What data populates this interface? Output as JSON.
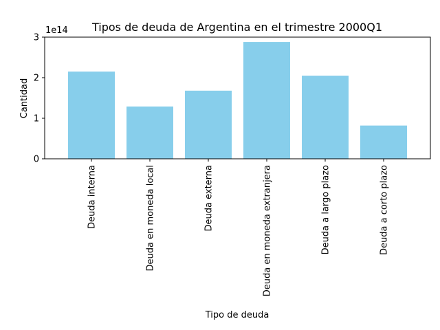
{
  "chart_data": {
    "type": "bar",
    "title": "Tipos de deuda de Argentina en el trimestre 2000Q1",
    "xlabel": "Tipo de deuda",
    "ylabel": "Cantidad",
    "offset_label": "1e14",
    "categories": [
      "Deuda interna",
      "Deuda en moneda local",
      "Deuda externa",
      "Deuda en moneda extranjera",
      "Deuda a largo plazo",
      "Deuda a corto plazo"
    ],
    "values": [
      215000000000000,
      129000000000000,
      168000000000000,
      288000000000000,
      205000000000000,
      82000000000000
    ],
    "ylim": [
      0,
      300000000000000
    ],
    "yticks": [
      0,
      100000000000000,
      200000000000000,
      300000000000000
    ],
    "ytick_labels": [
      "0",
      "1",
      "2",
      "3"
    ],
    "bar_color": "#87ceeb",
    "grid": false,
    "legend": "none"
  }
}
